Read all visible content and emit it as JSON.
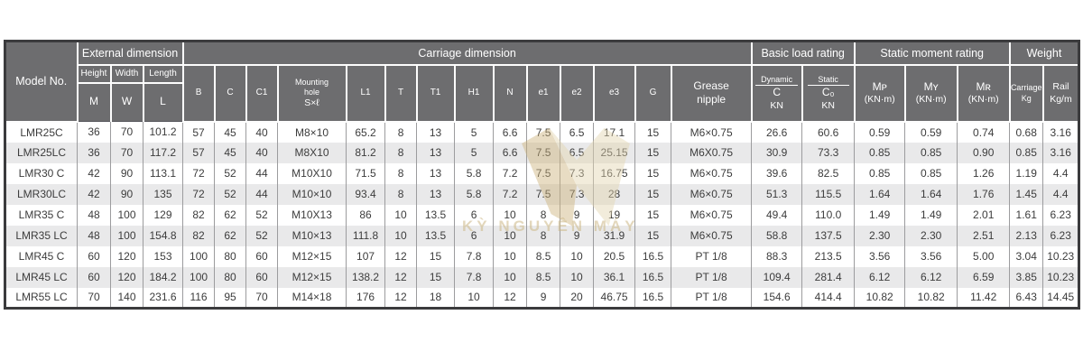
{
  "table": {
    "header": {
      "model_no": "Model No.",
      "external": {
        "label": "External dimension",
        "cols": [
          {
            "name": "Height",
            "sym": "M"
          },
          {
            "name": "Width",
            "sym": "W"
          },
          {
            "name": "Length",
            "sym": "L"
          }
        ]
      },
      "carriage": {
        "label": "Carriage dimension",
        "simple_pre": [
          "B",
          "C",
          "C1"
        ],
        "mounting": {
          "l1": "Mounting",
          "l2": "hole",
          "l3": "S×ℓ"
        },
        "simple_post": [
          "L1",
          "T",
          "T1",
          "H1",
          "N",
          "e1",
          "e2",
          "e3",
          "G"
        ],
        "grease": {
          "l1": "Grease",
          "l2": "nipple"
        }
      },
      "load": {
        "label": "Basic load rating",
        "dynamic": {
          "name": "Dynamic",
          "sym": "C",
          "unit": "KN"
        },
        "static": {
          "name": "Static",
          "sym": "C₀",
          "unit": "KN"
        }
      },
      "moment": {
        "label": "Static moment rating",
        "cols": [
          {
            "sym": "Mᴘ",
            "unit": "(KN·m)"
          },
          {
            "sym": "Mʏ",
            "unit": "(KN·m)"
          },
          {
            "sym": "Mʀ",
            "unit": "(KN·m)"
          }
        ]
      },
      "weight": {
        "label": "Weight",
        "cols": [
          {
            "l1": "Carriage",
            "l2": "Kg"
          },
          {
            "l1": "Rail",
            "l2": "Kg/m"
          }
        ]
      }
    },
    "rows": [
      [
        "LMR25C",
        "36",
        "70",
        "101.2",
        "57",
        "45",
        "40",
        "M8×10",
        "65.2",
        "8",
        "13",
        "5",
        "6.6",
        "7.5",
        "6.5",
        "17.1",
        "15",
        "M6×0.75",
        "26.6",
        "60.6",
        "0.59",
        "0.59",
        "0.74",
        "0.68",
        "3.16"
      ],
      [
        "LMR25LC",
        "36",
        "70",
        "117.2",
        "57",
        "45",
        "40",
        "M8X10",
        "81.2",
        "8",
        "13",
        "5",
        "6.6",
        "7.5",
        "6.5",
        "25.15",
        "15",
        "M6X0.75",
        "30.9",
        "73.3",
        "0.85",
        "0.85",
        "0.90",
        "0.85",
        "3.16"
      ],
      [
        "LMR30 C",
        "42",
        "90",
        "113.1",
        "72",
        "52",
        "44",
        "M10X10",
        "71.5",
        "8",
        "13",
        "5.8",
        "7.2",
        "7.5",
        "7.3",
        "16.75",
        "15",
        "M6×0.75",
        "39.6",
        "82.5",
        "0.85",
        "0.85",
        "1.26",
        "1.19",
        "4.4"
      ],
      [
        "LMR30LC",
        "42",
        "90",
        "135",
        "72",
        "52",
        "44",
        "M10×10",
        "93.4",
        "8",
        "13",
        "5.8",
        "7.2",
        "7.5",
        "7.3",
        "28",
        "15",
        "M6×0.75",
        "51.3",
        "115.5",
        "1.64",
        "1.64",
        "1.76",
        "1.45",
        "4.4"
      ],
      [
        "LMR35 C",
        "48",
        "100",
        "129",
        "82",
        "62",
        "52",
        "M10X13",
        "86",
        "10",
        "13.5",
        "6",
        "10",
        "8",
        "9",
        "19",
        "15",
        "M6×0.75",
        "49.4",
        "110.0",
        "1.49",
        "1.49",
        "2.01",
        "1.61",
        "6.23"
      ],
      [
        "LMR35 LC",
        "48",
        "100",
        "154.8",
        "82",
        "62",
        "52",
        "M10×13",
        "111.8",
        "10",
        "13.5",
        "6",
        "10",
        "8",
        "9",
        "31.9",
        "15",
        "M6×0.75",
        "58.8",
        "137.5",
        "2.30",
        "2.30",
        "2.51",
        "2.13",
        "6.23"
      ],
      [
        "LMR45 C",
        "60",
        "120",
        "153",
        "100",
        "80",
        "60",
        "M12×15",
        "107",
        "12",
        "15",
        "7.8",
        "10",
        "8.5",
        "10",
        "20.5",
        "16.5",
        "PT 1/8",
        "88.3",
        "213.5",
        "3.56",
        "3.56",
        "5.00",
        "3.04",
        "10.23"
      ],
      [
        "LMR45 LC",
        "60",
        "120",
        "184.2",
        "100",
        "80",
        "60",
        "M12×15",
        "138.2",
        "12",
        "15",
        "7.8",
        "10",
        "8.5",
        "10",
        "36.1",
        "16.5",
        "PT 1/8",
        "109.4",
        "281.4",
        "6.12",
        "6.12",
        "6.59",
        "3.85",
        "10.23"
      ],
      [
        "LMR55 LC",
        "70",
        "140",
        "231.6",
        "116",
        "95",
        "70",
        "M14×18",
        "176",
        "12",
        "18",
        "10",
        "12",
        "9",
        "20",
        "46.75",
        "16.5",
        "PT 1/8",
        "154.6",
        "414.4",
        "10.82",
        "10.82",
        "11.42",
        "6.43",
        "14.45"
      ]
    ]
  },
  "watermark": {
    "text": "KỲ NGUYÊN MÁY"
  },
  "colors": {
    "header_bg": "#6d6d6f",
    "stripe_bg": "#e9e9ea",
    "cell_border": "#9c9c9e",
    "outer_border": "#3b3b3d",
    "watermark_gold_dark": "#cdb37b",
    "watermark_gold_light": "#e4d6b0"
  }
}
